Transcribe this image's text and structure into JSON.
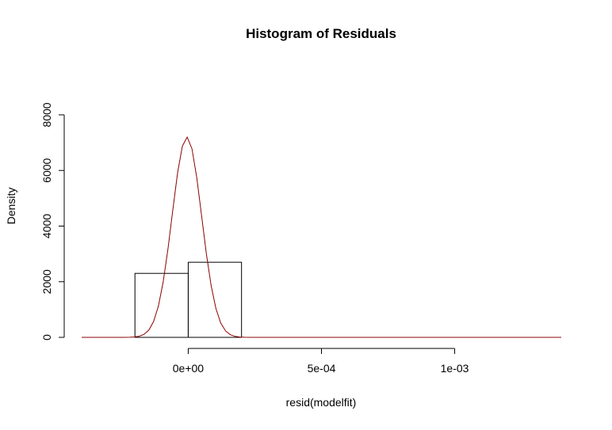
{
  "chart_data": {
    "type": "histogram",
    "title": "Histogram of Residuals",
    "xlabel": "resid(modelfit)",
    "ylabel": "Density",
    "xlim": [
      -0.0004,
      0.0014
    ],
    "ylim": [
      0,
      8000
    ],
    "x_ticks": [
      0,
      0.0005,
      0.001
    ],
    "x_tick_labels": [
      "0e+00",
      "5e-04",
      "1e-03"
    ],
    "y_ticks": [
      0,
      2000,
      4000,
      6000,
      8000
    ],
    "y_tick_labels": [
      "0",
      "2000",
      "4000",
      "6000",
      "8000"
    ],
    "bins": [
      {
        "start": -0.0002,
        "end": 0.0,
        "density": 2300
      },
      {
        "start": 0.0,
        "end": 0.0002,
        "density": 2700
      }
    ],
    "density_curve": {
      "color": "#8b0000",
      "mean": -5.2e-06,
      "sd": 5.54e-05,
      "peak_density": 7200,
      "x_range": [
        -0.0004,
        0.0014
      ]
    },
    "grid": false,
    "legend": "none"
  }
}
